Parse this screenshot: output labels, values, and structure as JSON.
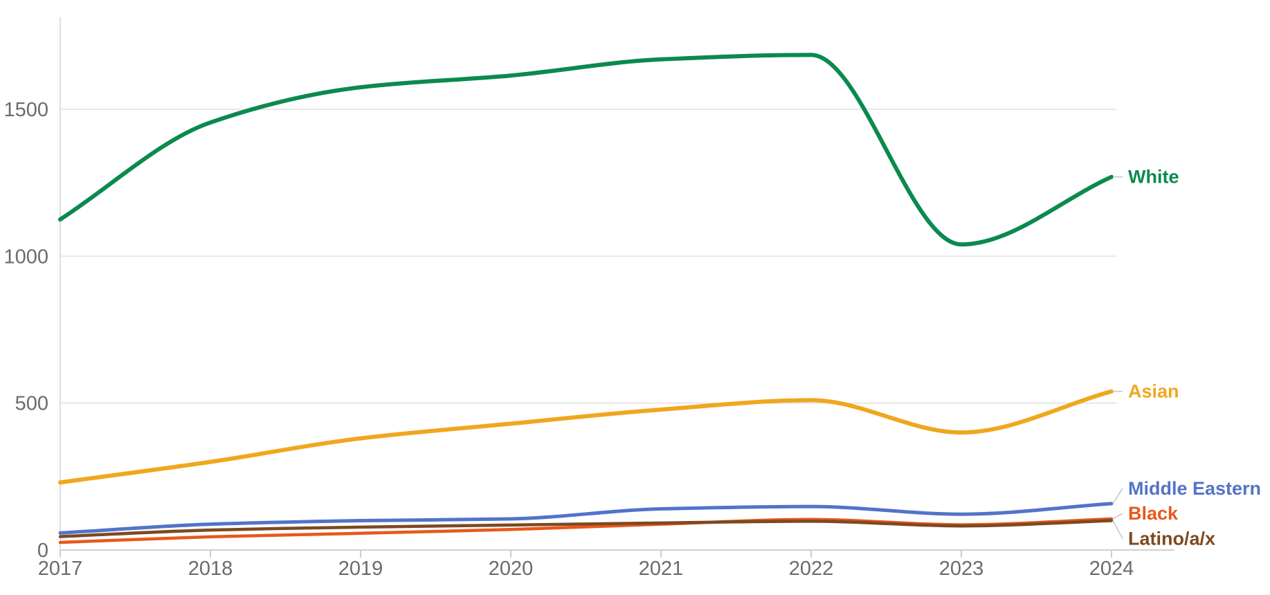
{
  "chart_data": {
    "type": "line",
    "title": "",
    "xlabel": "",
    "ylabel": "",
    "x": [
      2017,
      2018,
      2019,
      2020,
      2021,
      2022,
      2023,
      2024
    ],
    "x_tick_labels": [
      "2017",
      "2018",
      "2019",
      "2020",
      "2021",
      "2022",
      "2023",
      "2024"
    ],
    "y_ticks": [
      0,
      500,
      1000,
      1500
    ],
    "y_tick_labels": [
      "0",
      "500",
      "1000",
      "1500"
    ],
    "xlim": [
      2017,
      2024
    ],
    "ylim": [
      0,
      1810
    ],
    "grid": true,
    "legend_position": "right-end-of-line",
    "series": [
      {
        "name": "White",
        "color": "#0b8a4e",
        "values": [
          1125,
          1455,
          1575,
          1615,
          1670,
          1685,
          1040,
          1270
        ]
      },
      {
        "name": "Asian",
        "color": "#efa71d",
        "values": [
          230,
          300,
          380,
          430,
          478,
          510,
          400,
          540
        ]
      },
      {
        "name": "Middle Eastern",
        "color": "#5373c8",
        "values": [
          58,
          88,
          100,
          106,
          140,
          148,
          122,
          158
        ]
      },
      {
        "name": "Black",
        "color": "#e8581c",
        "values": [
          26,
          45,
          57,
          70,
          88,
          104,
          86,
          106
        ]
      },
      {
        "name": "Latino/a/x",
        "color": "#7d4920",
        "values": [
          46,
          68,
          78,
          85,
          92,
          98,
          82,
          100
        ]
      }
    ],
    "axis_colors": {
      "gridline": "#e7e7e7",
      "baseline": "#cfcfcf",
      "axis_line": "#dedede",
      "tick": "#cdcdcd",
      "tick_text": "#6b6b6b",
      "leader": "#c3c7d2"
    }
  }
}
